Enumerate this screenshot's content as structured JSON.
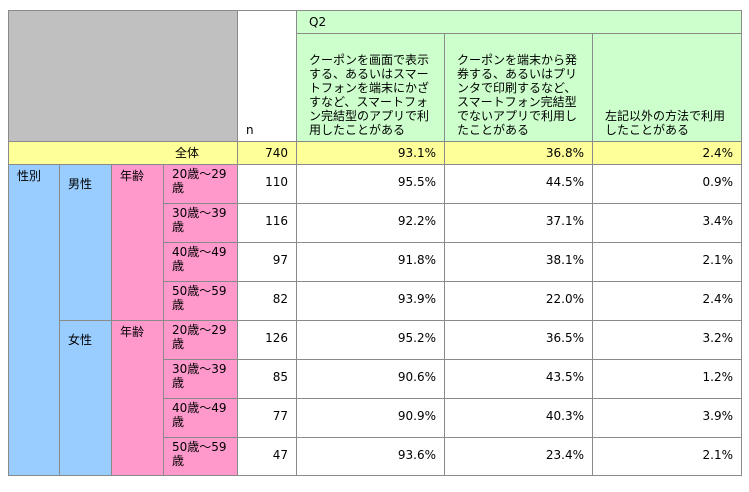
{
  "header": {
    "n_label": "n",
    "question": "Q2",
    "columns": [
      "クーポンを画面で表示する、あるいはスマートフォンを端末にかざすなど、スマートフォン完結型のアプリで利用したことがある",
      "クーポンを端末から発券する、あるいはプリンタで印刷するなど、スマートフォン完結型でないアプリで利用したことがある",
      "左記以外の方法で利用したことがある"
    ]
  },
  "total": {
    "label": "全体",
    "n": "740",
    "values": [
      "93.1%",
      "36.8%",
      "2.4%"
    ]
  },
  "group": {
    "label": "性別",
    "subgroups": [
      {
        "label": "男性",
        "sublabel": "年齢",
        "rows": [
          {
            "age": "20歳～29歳",
            "n": "110",
            "values": [
              "95.5%",
              "44.5%",
              "0.9%"
            ]
          },
          {
            "age": "30歳～39歳",
            "n": "116",
            "values": [
              "92.2%",
              "37.1%",
              "3.4%"
            ]
          },
          {
            "age": "40歳～49歳",
            "n": "97",
            "values": [
              "91.8%",
              "38.1%",
              "2.1%"
            ]
          },
          {
            "age": "50歳～59歳",
            "n": "82",
            "values": [
              "93.9%",
              "22.0%",
              "2.4%"
            ]
          }
        ]
      },
      {
        "label": "女性",
        "sublabel": "年齢",
        "rows": [
          {
            "age": "20歳～29歳",
            "n": "126",
            "values": [
              "95.2%",
              "36.5%",
              "3.2%"
            ]
          },
          {
            "age": "30歳～39歳",
            "n": "85",
            "values": [
              "90.6%",
              "43.5%",
              "1.2%"
            ]
          },
          {
            "age": "40歳～49歳",
            "n": "77",
            "values": [
              "90.9%",
              "40.3%",
              "3.9%"
            ]
          },
          {
            "age": "50歳～59歳",
            "n": "47",
            "values": [
              "93.6%",
              "23.4%",
              "2.1%"
            ]
          }
        ]
      }
    ]
  }
}
